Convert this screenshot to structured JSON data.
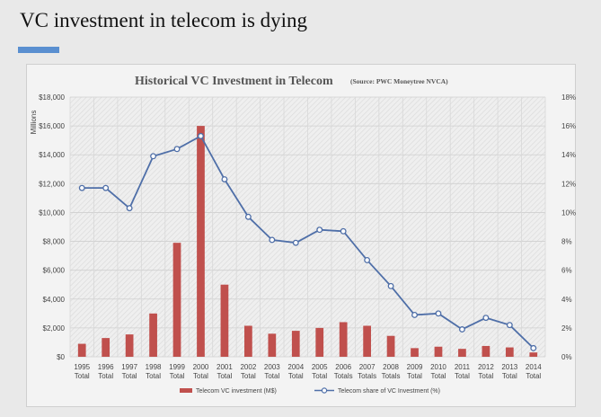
{
  "slide": {
    "title": "VC investment in telecom is dying"
  },
  "colors": {
    "accent": "#5a8fd0",
    "bar": "#c0504d",
    "line": "#4f6fa8"
  },
  "chart_data": {
    "type": "bar+line",
    "title": "Historical VC Investment in Telecom",
    "subtitle": "(Source: PWC Moneytree NVCA)",
    "y_left_label": "Millions",
    "categories": [
      [
        "1995",
        "Total"
      ],
      [
        "1996",
        "Total"
      ],
      [
        "1997",
        "Total"
      ],
      [
        "1998",
        "Total"
      ],
      [
        "1999",
        "Total"
      ],
      [
        "2000",
        "Total"
      ],
      [
        "2001",
        "Total"
      ],
      [
        "2002",
        "Total"
      ],
      [
        "2003",
        "Total"
      ],
      [
        "2004",
        "Total"
      ],
      [
        "2005",
        "Total"
      ],
      [
        "2006",
        "Totals"
      ],
      [
        "2007",
        "Totals"
      ],
      [
        "2008",
        "Totals"
      ],
      [
        "2009",
        "Total"
      ],
      [
        "2010",
        "Total"
      ],
      [
        "2011",
        "Total"
      ],
      [
        "2012",
        "Total"
      ],
      [
        "2013",
        "Total"
      ],
      [
        "2014",
        "Total"
      ]
    ],
    "y_left_ticks": [
      "$0",
      "$2,000",
      "$4,000",
      "$6,000",
      "$8,000",
      "$10,000",
      "$12,000",
      "$14,000",
      "$16,000",
      "$18,000"
    ],
    "y_right_ticks": [
      "0%",
      "2%",
      "4%",
      "6%",
      "8%",
      "10%",
      "12%",
      "14%",
      "16%",
      "18%"
    ],
    "ylim_left": [
      0,
      18000
    ],
    "ylim_right": [
      0,
      18
    ],
    "grid": true,
    "legend_position": "bottom",
    "series": [
      {
        "name": "Telecom VC investment (M$)",
        "type": "bar",
        "axis": "left",
        "values": [
          900,
          1300,
          1550,
          3000,
          7900,
          16000,
          5000,
          2150,
          1600,
          1800,
          2000,
          2400,
          2150,
          1450,
          600,
          700,
          550,
          750,
          650,
          300
        ]
      },
      {
        "name": "Telecom share of VC Investment (%)",
        "type": "line",
        "axis": "right",
        "values": [
          11.7,
          11.7,
          10.3,
          13.9,
          14.4,
          15.3,
          12.3,
          9.7,
          8.1,
          7.9,
          8.8,
          8.7,
          6.7,
          4.9,
          2.9,
          3.0,
          1.9,
          2.7,
          2.2,
          0.6
        ]
      }
    ]
  }
}
